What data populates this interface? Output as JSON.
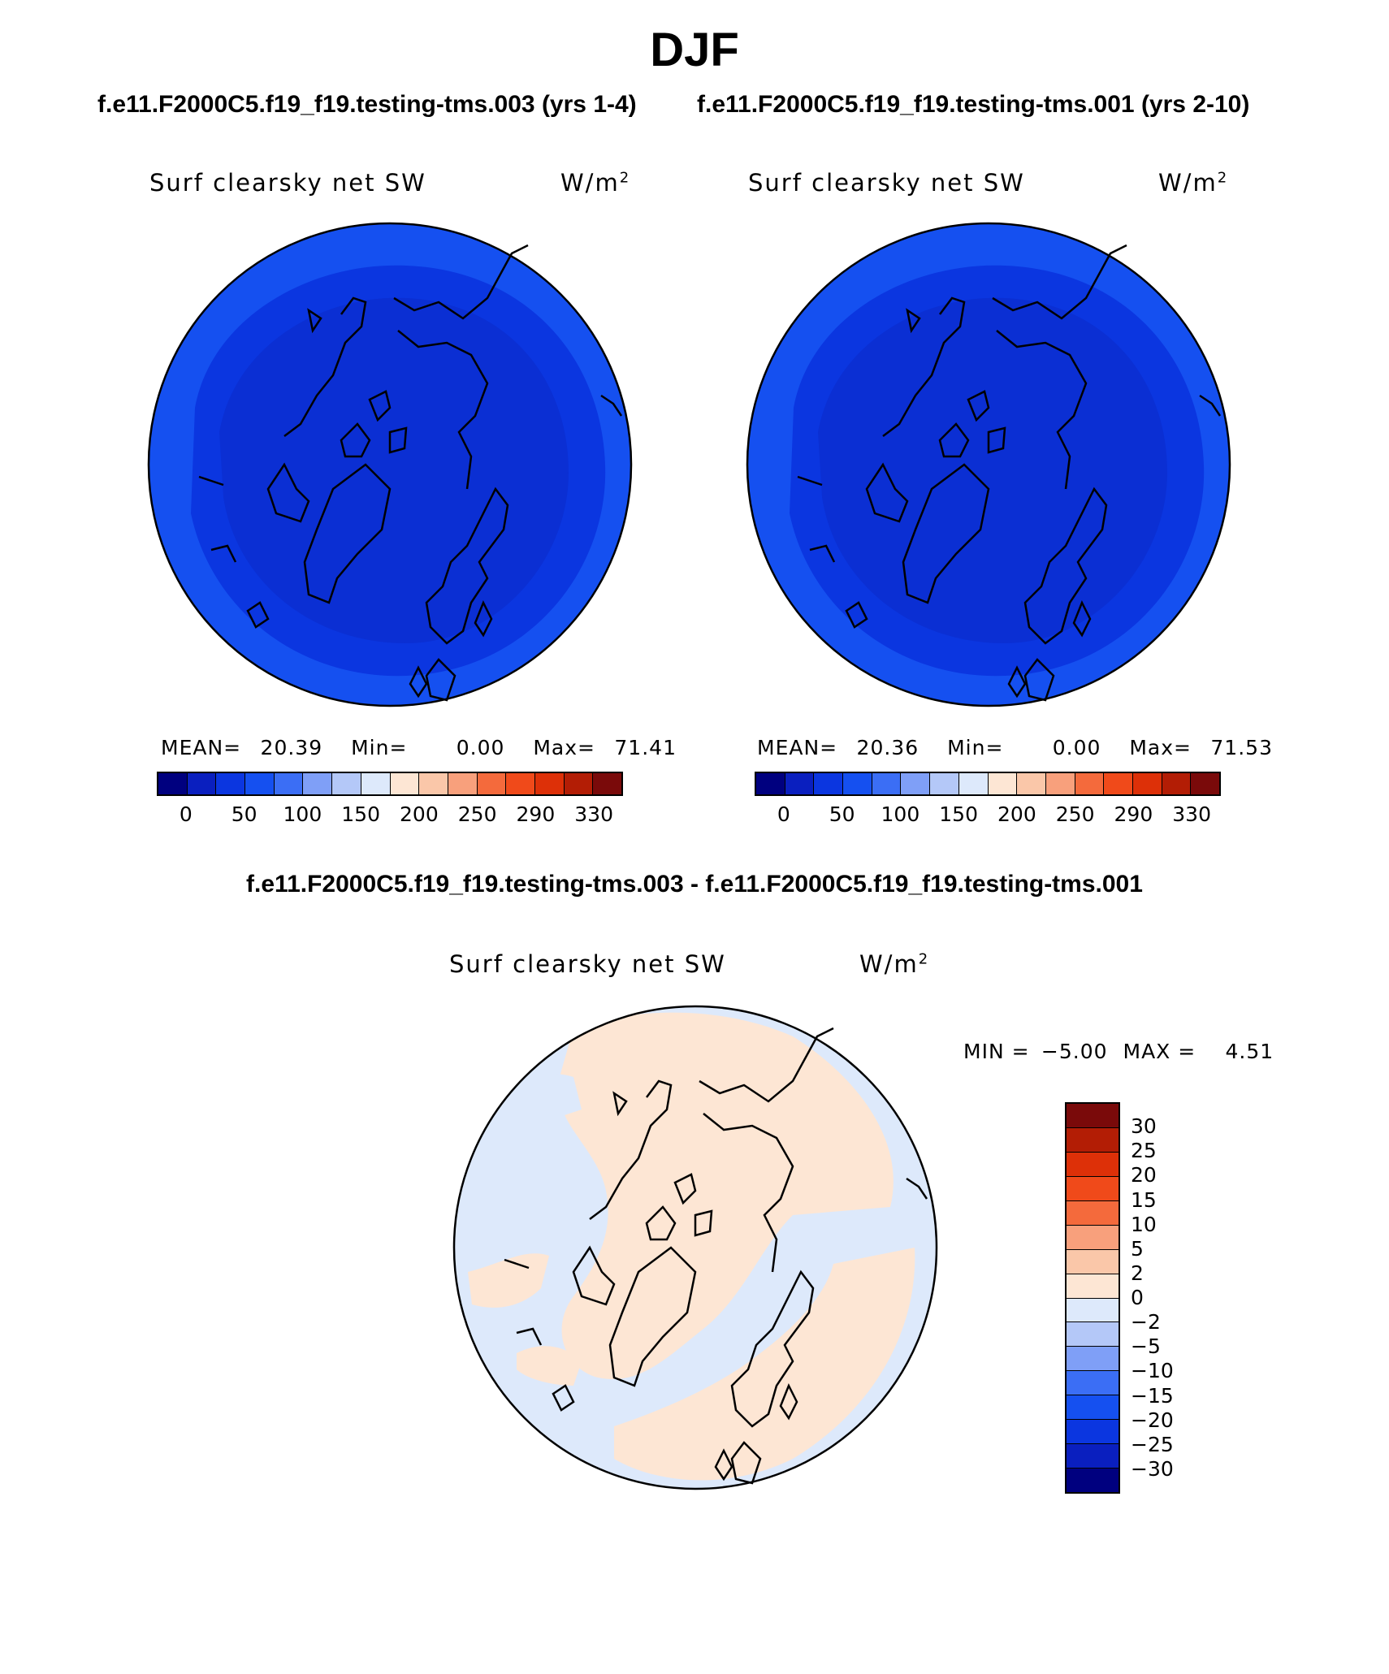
{
  "title": "DJF",
  "case_titles": {
    "left": "f.e11.F2000C5.f19_f19.testing-tms.003 (yrs 1-4)",
    "right": "f.e11.F2000C5.f19_f19.testing-tms.001 (yrs 2-10)"
  },
  "diff_title": "f.e11.F2000C5.f19_f19.testing-tms.003 - f.e11.F2000C5.f19_f19.testing-tms.001",
  "variable": "Surf clearsky net SW",
  "units": {
    "base": "W/m",
    "exp": "2"
  },
  "panels": [
    {
      "mean_label": "MEAN=",
      "mean": "20.39",
      "min_label": "Min=",
      "min": "0.00",
      "max_label": "Max=",
      "max": "71.41"
    },
    {
      "mean_label": "MEAN=",
      "mean": "20.36",
      "min_label": "Min=",
      "min": "0.00",
      "max_label": "Max=",
      "max": "71.53"
    }
  ],
  "diff_stats": {
    "min_label": "MIN =",
    "min": "−5.00",
    "max_label": "MAX =",
    "max": "4.51"
  },
  "colorbar_abs": {
    "colors": [
      "#00007f",
      "#0a1fbf",
      "#0b36e0",
      "#1550f0",
      "#3b6ef5",
      "#7f9ff7",
      "#b4c8f8",
      "#dde9fb",
      "#fde6d4",
      "#fac7a9",
      "#f8a07c",
      "#f46a3c",
      "#f04a1a",
      "#dd3008",
      "#b31d05",
      "#7a0a0a"
    ],
    "ticks": [
      "0",
      "50",
      "100",
      "150",
      "200",
      "250",
      "290",
      "330"
    ]
  },
  "colorbar_diff": {
    "colors": [
      "#7a0a0a",
      "#b31d05",
      "#dd3008",
      "#f04a1a",
      "#f46a3c",
      "#f8a07c",
      "#fac7a9",
      "#fde6d4",
      "#dde9fb",
      "#b4c8f8",
      "#7f9ff7",
      "#3b6ef5",
      "#1550f0",
      "#0b36e0",
      "#0a1fbf",
      "#00007f"
    ],
    "ticks": [
      "30",
      "25",
      "20",
      "15",
      "10",
      "5",
      "2",
      "0",
      "−2",
      "−5",
      "−10",
      "−15",
      "−20",
      "−25",
      "−30"
    ]
  },
  "map_colors": {
    "abs_inner": "#0b2fd3",
    "abs_mid": "#0b36e0",
    "abs_outer": "#1550f0",
    "diff_pos": "#fde6d4",
    "diff_neg": "#dde9fb",
    "diff_pos2": "#fac7a9"
  }
}
